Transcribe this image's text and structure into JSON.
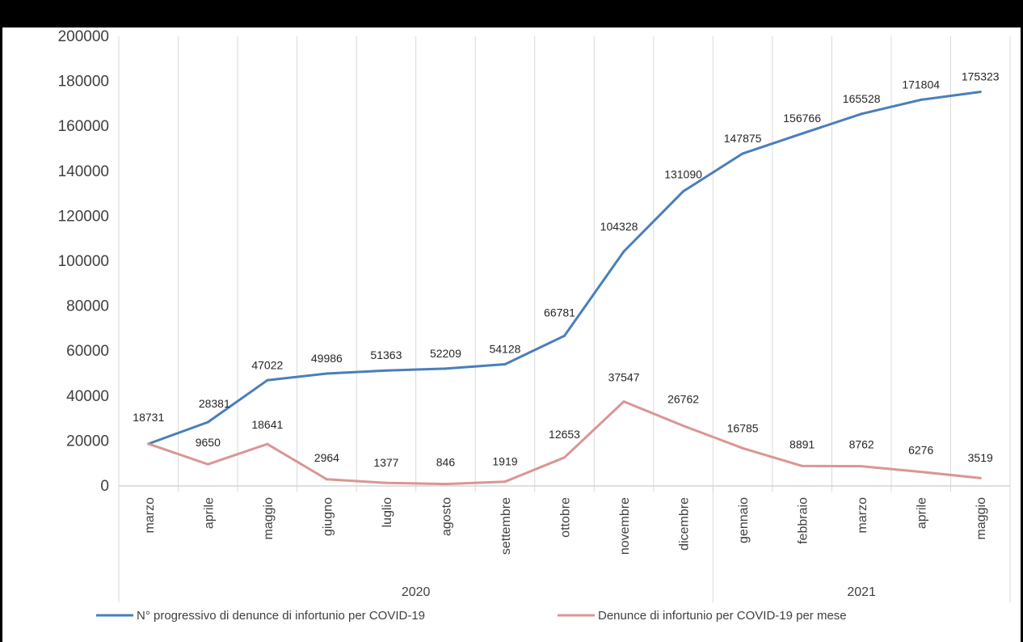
{
  "chart_data": {
    "type": "line",
    "title": "",
    "xlabel": "",
    "ylabel": "",
    "ylim": [
      0,
      200000
    ],
    "y_ticks": [
      0,
      20000,
      40000,
      60000,
      80000,
      100000,
      120000,
      140000,
      160000,
      180000,
      200000
    ],
    "grid": "vertical",
    "legend_position": "bottom",
    "categories": [
      "marzo",
      "aprile",
      "maggio",
      "giugno",
      "luglio",
      "agosto",
      "settembre",
      "ottobre",
      "novembre",
      "dicembre",
      "gennaio",
      "febbraio",
      "marzo",
      "aprile",
      "maggio"
    ],
    "groups": [
      {
        "label": "2020",
        "start": 0,
        "end": 9
      },
      {
        "label": "2021",
        "start": 10,
        "end": 14
      }
    ],
    "series": [
      {
        "name": "N° progressivo di denunce di infortunio per COVID-19",
        "color": "#4a7ebb",
        "values": [
          18731,
          28381,
          47022,
          49986,
          51363,
          52209,
          54128,
          66781,
          104328,
          131090,
          147875,
          156766,
          165528,
          171804,
          175323
        ]
      },
      {
        "name": "Denunce di infortunio per COVID-19 per mese",
        "color": "#d99694",
        "values": [
          18731,
          9650,
          18641,
          2964,
          1377,
          846,
          1919,
          12653,
          37547,
          26762,
          16785,
          8891,
          8762,
          6276,
          3519
        ]
      }
    ]
  }
}
